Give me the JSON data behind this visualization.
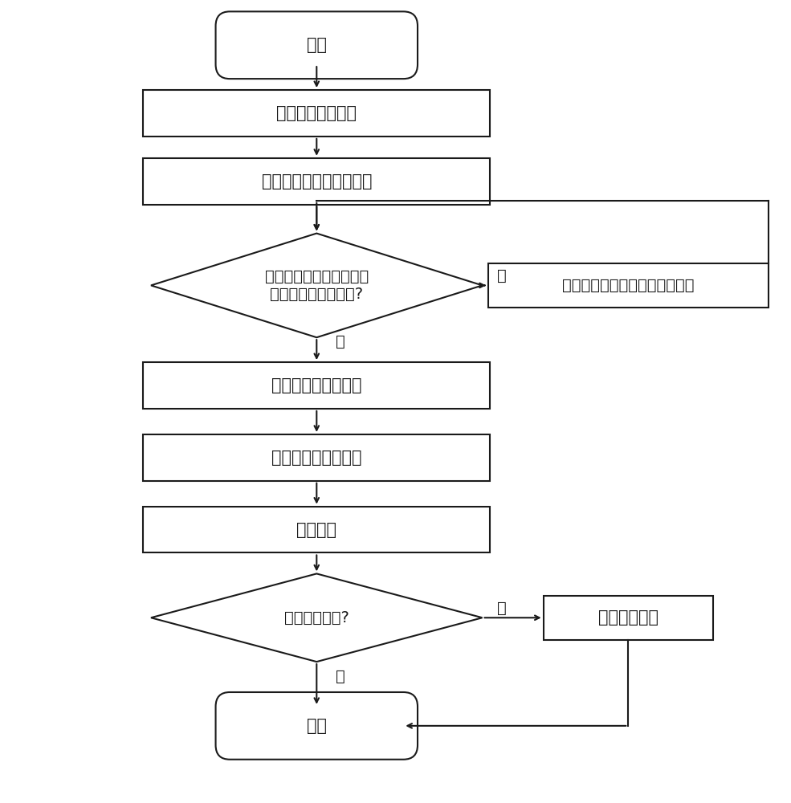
{
  "bg_color": "#ffffff",
  "line_color": "#1a1a1a",
  "text_color": "#1a1a1a",
  "font_size": 15,
  "nodes": {
    "start": {
      "label": "开始"
    },
    "box1": {
      "label": "选择待存储的药品"
    },
    "box2": {
      "label": "选择存储药品的存储单元"
    },
    "diamond1": {
      "label": "是否已将存储单元所在的\n抽屉拉出到预订位置?"
    },
    "box_no1": {
      "label": "提示用户将抽屉拉出至预订位置"
    },
    "box3": {
      "label": "输入存储的药品数量"
    },
    "box4": {
      "label": "选择药品的过期时间"
    },
    "box5": {
      "label": "存储药品"
    },
    "diamond2": {
      "label": "存储是否成功?"
    },
    "box_no2": {
      "label": "提示发生错误"
    },
    "end": {
      "label": "结束"
    }
  },
  "labels": {
    "yes": "是",
    "no": "否"
  }
}
